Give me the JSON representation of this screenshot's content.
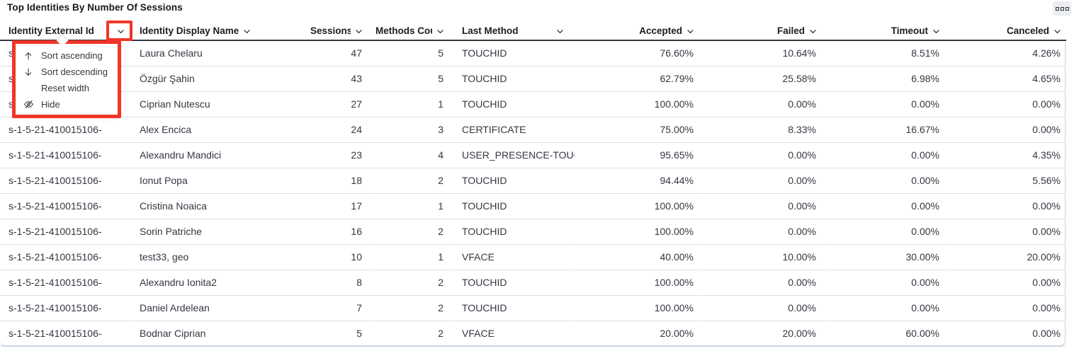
{
  "panel": {
    "title": "Top Identities By Number Of Sessions",
    "options_icon": "boxes-horizontal-icon"
  },
  "annotation": {
    "color": "#f13527"
  },
  "table": {
    "columns": [
      {
        "label": "Identity External Id",
        "align": "left"
      },
      {
        "label": "Identity Display Name",
        "align": "left"
      },
      {
        "label": "Sessions",
        "align": "right"
      },
      {
        "label": "Methods Count",
        "align": "right"
      },
      {
        "label": "Last Method",
        "align": "left"
      },
      {
        "label": "Accepted",
        "align": "right"
      },
      {
        "label": "Failed",
        "align": "right"
      },
      {
        "label": "Timeout",
        "align": "right"
      },
      {
        "label": "Canceled",
        "align": "right"
      }
    ],
    "rows": [
      [
        "s-1-5-21-410015106-",
        "Laura Chelaru",
        "47",
        "5",
        "TOUCHID",
        "76.60%",
        "10.64%",
        "8.51%",
        "4.26%"
      ],
      [
        "s-1-5-21-410015106-",
        "Özgür Şahin",
        "43",
        "5",
        "TOUCHID",
        "62.79%",
        "25.58%",
        "6.98%",
        "4.65%"
      ],
      [
        "s-1-5-21-410015106-",
        "Ciprian Nutescu",
        "27",
        "1",
        "TOUCHID",
        "100.00%",
        "0.00%",
        "0.00%",
        "0.00%"
      ],
      [
        "s-1-5-21-410015106-",
        "Alex Encica",
        "24",
        "3",
        "CERTIFICATE",
        "75.00%",
        "8.33%",
        "16.67%",
        "0.00%"
      ],
      [
        "s-1-5-21-410015106-",
        "Alexandru Mandici",
        "23",
        "4",
        "USER_PRESENCE-TOUC",
        "95.65%",
        "0.00%",
        "0.00%",
        "4.35%"
      ],
      [
        "s-1-5-21-410015106-",
        "Ionut Popa",
        "18",
        "2",
        "TOUCHID",
        "94.44%",
        "0.00%",
        "0.00%",
        "5.56%"
      ],
      [
        "s-1-5-21-410015106-",
        "Cristina Noaica",
        "17",
        "1",
        "TOUCHID",
        "100.00%",
        "0.00%",
        "0.00%",
        "0.00%"
      ],
      [
        "s-1-5-21-410015106-",
        "Sorin Patriche",
        "16",
        "2",
        "TOUCHID",
        "100.00%",
        "0.00%",
        "0.00%",
        "0.00%"
      ],
      [
        "s-1-5-21-410015106-",
        "test33, geo",
        "10",
        "1",
        "VFACE",
        "40.00%",
        "10.00%",
        "30.00%",
        "20.00%"
      ],
      [
        "s-1-5-21-410015106-",
        "Alexandru Ionita2",
        "8",
        "2",
        "TOUCHID",
        "100.00%",
        "0.00%",
        "0.00%",
        "0.00%"
      ],
      [
        "s-1-5-21-410015106-",
        "Daniel Ardelean",
        "7",
        "2",
        "TOUCHID",
        "100.00%",
        "0.00%",
        "0.00%",
        "0.00%"
      ],
      [
        "s-1-5-21-410015106-",
        "Bodnar Ciprian",
        "5",
        "2",
        "VFACE",
        "20.00%",
        "20.00%",
        "60.00%",
        "0.00%"
      ]
    ]
  },
  "column_menu": {
    "anchor_column": "Identity External Id",
    "items": [
      {
        "icon": "sort-ascending-icon",
        "label": "Sort ascending"
      },
      {
        "icon": "sort-descending-icon",
        "label": "Sort descending"
      },
      {
        "icon": "",
        "label": "Reset width"
      },
      {
        "icon": "eye-closed-icon",
        "label": "Hide"
      }
    ]
  }
}
